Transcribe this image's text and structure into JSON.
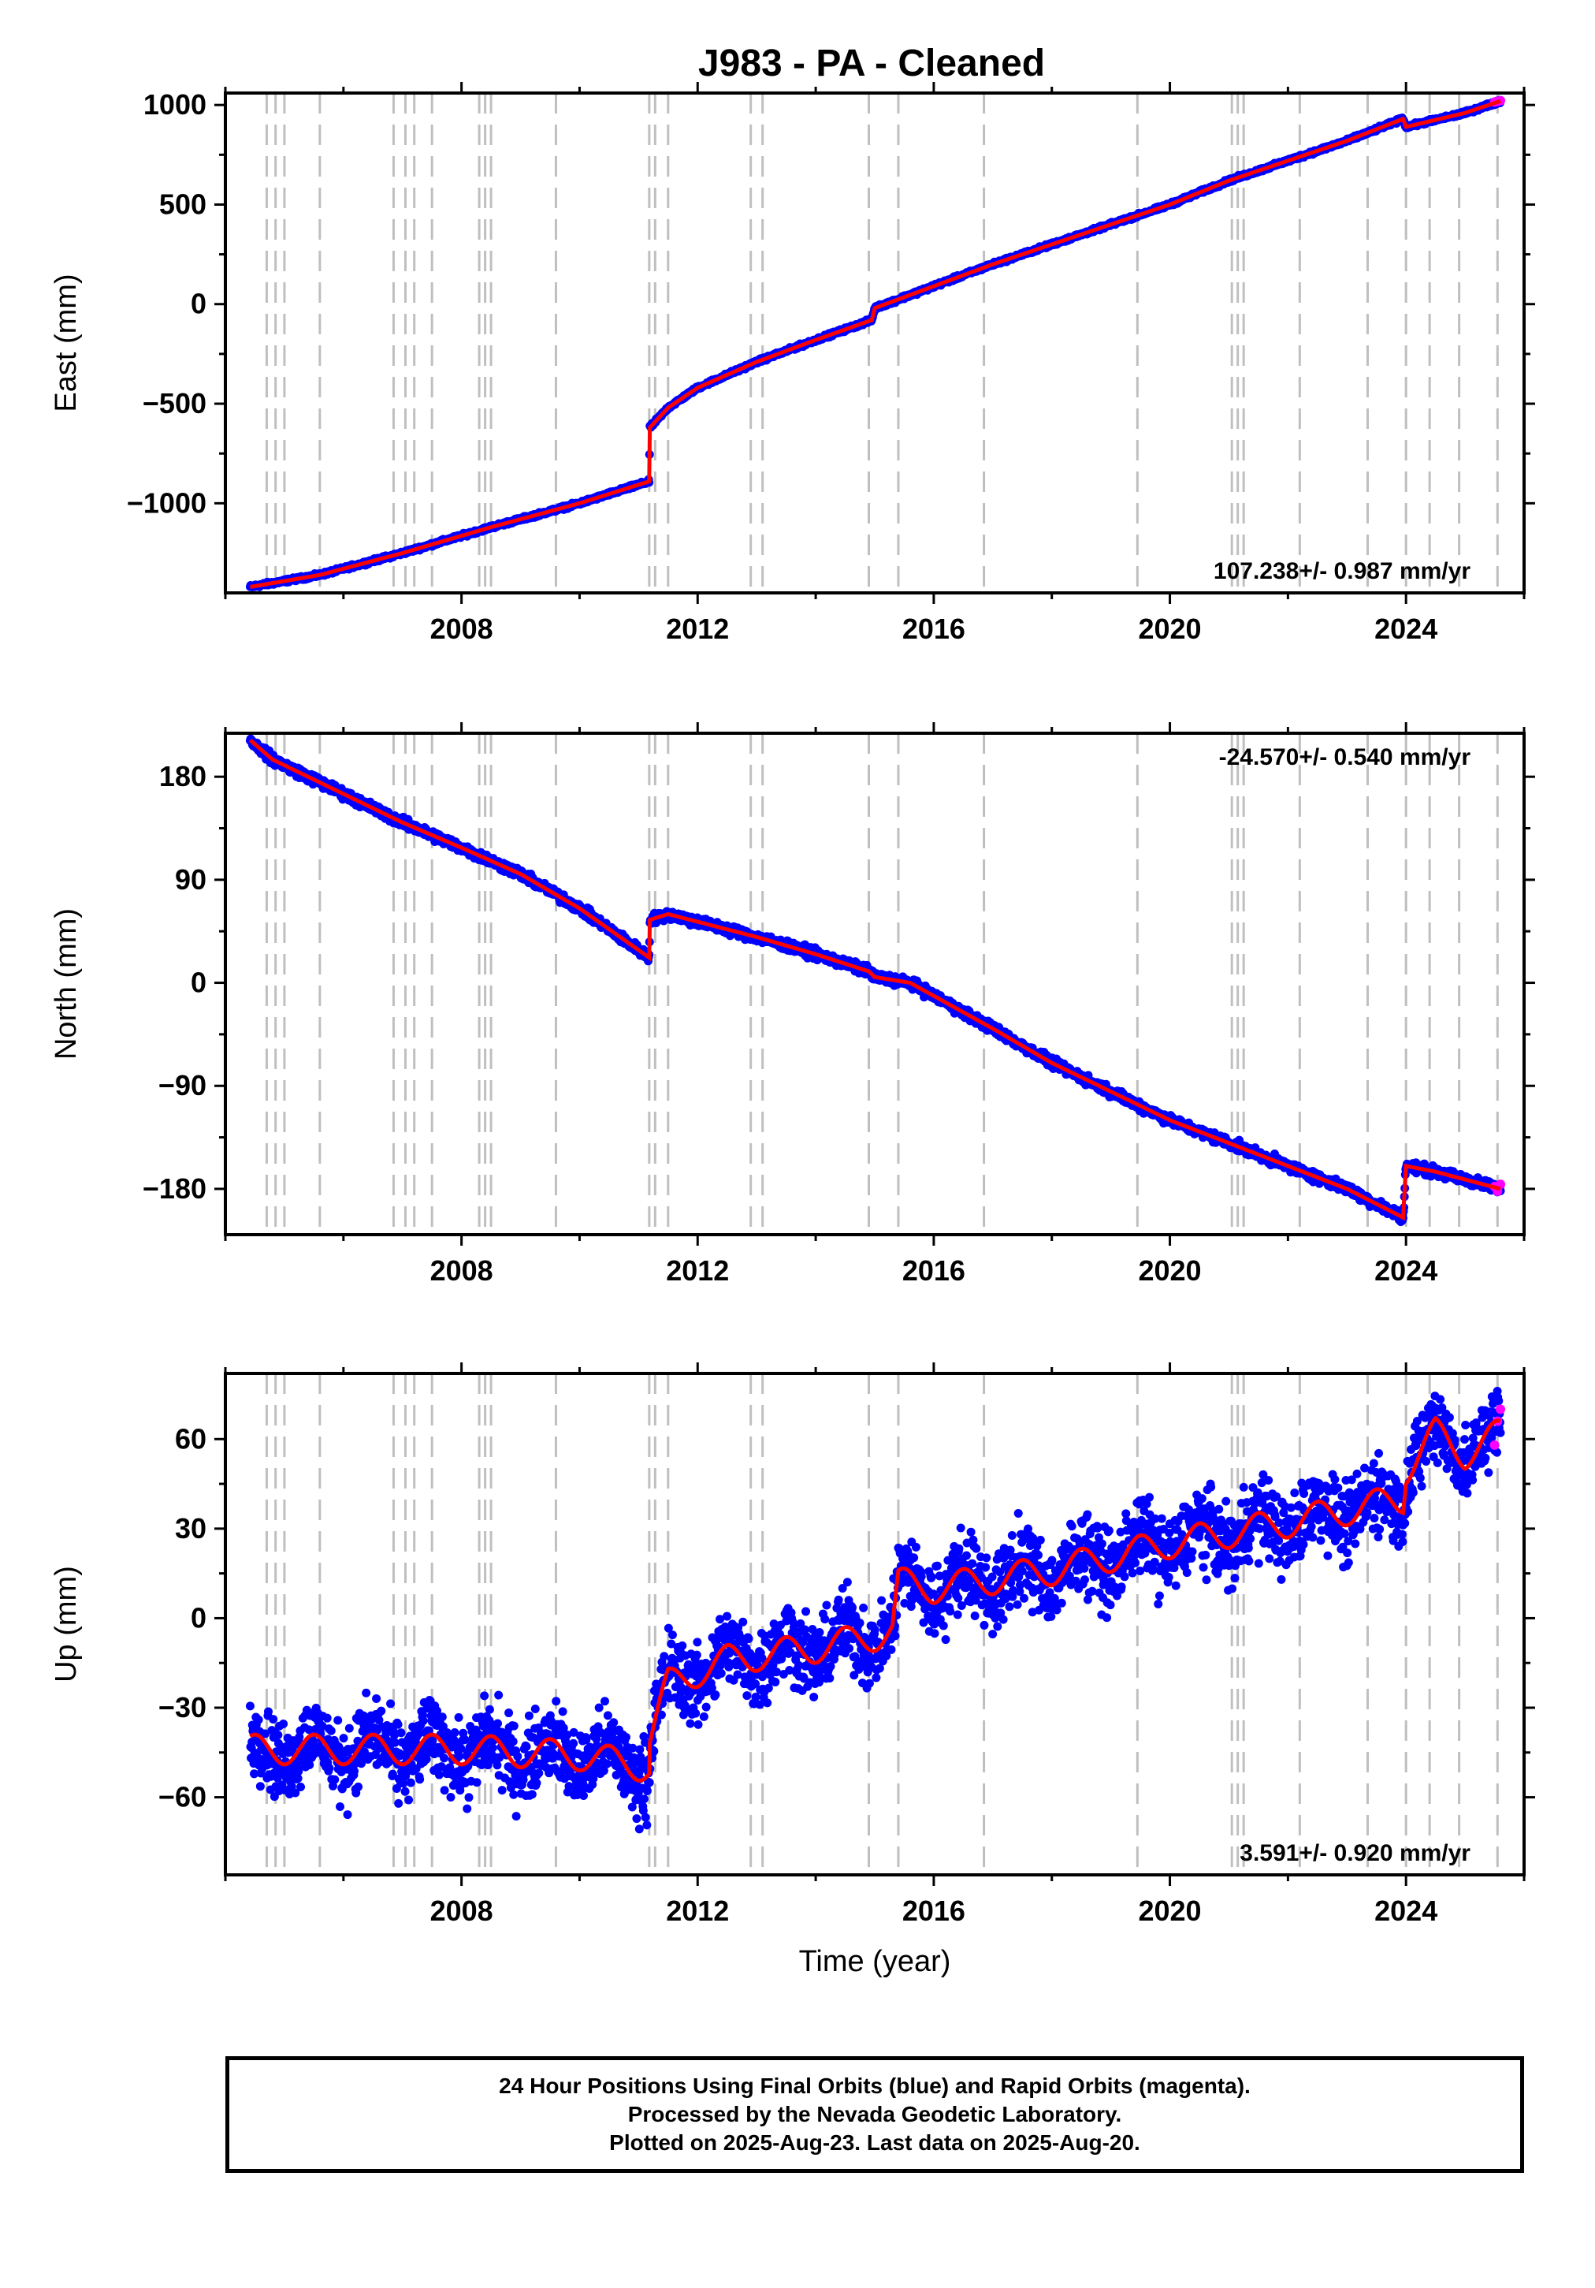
{
  "title": "J983  - PA - Cleaned",
  "footer": {
    "line1": "24 Hour Positions Using Final Orbits (blue) and Rapid Orbits (magenta).",
    "line2": "Processed by the Nevada Geodetic Laboratory.",
    "line3": "Plotted on 2025-Aug-23. Last data on 2025-Aug-20."
  },
  "colors": {
    "final": "#0000ff",
    "rapid": "#ff00ff",
    "model": "#ff0000",
    "event_lines": "#bfbfbf"
  },
  "chart_data": [
    {
      "type": "scatter",
      "panel": "east",
      "ylabel": "East (mm)",
      "xlabel": "",
      "xlim": [
        2004.0,
        2026.0
      ],
      "ylim": [
        -1450,
        1060
      ],
      "x_ticks": [
        2008,
        2012,
        2016,
        2020,
        2024
      ],
      "y_ticks": [
        -1000,
        -500,
        0,
        500,
        1000
      ],
      "rate": "107.238+/- 0.987 mm/yr",
      "rate_position": "bottom-right",
      "series_points": [
        [
          2004.42,
          -1420
        ],
        [
          2005.6,
          -1360
        ],
        [
          2007.0,
          -1250
        ],
        [
          2008.5,
          -1120
        ],
        [
          2010.0,
          -1000
        ],
        [
          2011.18,
          -890
        ],
        [
          2011.19,
          -620
        ],
        [
          2011.5,
          -520
        ],
        [
          2012.0,
          -420
        ],
        [
          2013.0,
          -290
        ],
        [
          2014.0,
          -180
        ],
        [
          2014.95,
          -80
        ],
        [
          2015.0,
          -20
        ],
        [
          2016.0,
          90
        ],
        [
          2017.0,
          200
        ],
        [
          2018.0,
          300
        ],
        [
          2019.0,
          400
        ],
        [
          2020.0,
          500
        ],
        [
          2021.0,
          620
        ],
        [
          2022.0,
          720
        ],
        [
          2023.0,
          820
        ],
        [
          2023.95,
          930
        ],
        [
          2024.0,
          890
        ],
        [
          2025.0,
          960
        ],
        [
          2025.6,
          1020
        ]
      ],
      "rapid_points": [
        [
          2025.5,
          1015
        ],
        [
          2025.55,
          1018
        ],
        [
          2025.6,
          1022
        ]
      ],
      "scatter_amplitude": 6
    },
    {
      "type": "scatter",
      "panel": "north",
      "ylabel": "North (mm)",
      "xlabel": "",
      "xlim": [
        2004.0,
        2026.0
      ],
      "ylim": [
        -220,
        218
      ],
      "x_ticks": [
        2008,
        2012,
        2016,
        2020,
        2024
      ],
      "y_ticks": [
        -180,
        -90,
        0,
        90,
        180
      ],
      "rate": "-24.570+/- 0.540 mm/yr",
      "rate_position": "top-right",
      "series_points": [
        [
          2004.42,
          212
        ],
        [
          2004.8,
          195
        ],
        [
          2006.0,
          165
        ],
        [
          2007.0,
          140
        ],
        [
          2008.0,
          118
        ],
        [
          2009.0,
          95
        ],
        [
          2010.0,
          65
        ],
        [
          2011.18,
          22
        ],
        [
          2011.19,
          55
        ],
        [
          2011.5,
          60
        ],
        [
          2013.0,
          40
        ],
        [
          2014.0,
          25
        ],
        [
          2014.9,
          10
        ],
        [
          2015.0,
          5
        ],
        [
          2015.6,
          0
        ],
        [
          2017.0,
          -40
        ],
        [
          2018.0,
          -70
        ],
        [
          2019.0,
          -95
        ],
        [
          2020.0,
          -120
        ],
        [
          2021.0,
          -140
        ],
        [
          2022.0,
          -160
        ],
        [
          2023.0,
          -180
        ],
        [
          2023.95,
          -205
        ],
        [
          2024.0,
          -160
        ],
        [
          2024.5,
          -165
        ],
        [
          2025.6,
          -180
        ]
      ],
      "rapid_points": [
        [
          2025.5,
          -178
        ],
        [
          2025.55,
          -182
        ],
        [
          2025.6,
          -176
        ]
      ],
      "scatter_amplitude": 3
    },
    {
      "type": "scatter",
      "panel": "up",
      "ylabel": "Up (mm)",
      "xlabel": "Time (year)",
      "xlim": [
        2004.0,
        2026.0
      ],
      "ylim": [
        -86,
        82
      ],
      "x_ticks": [
        2008,
        2012,
        2016,
        2020,
        2024
      ],
      "y_ticks": [
        -60,
        -30,
        0,
        30,
        60
      ],
      "rate": "3.591+/- 0.920 mm/yr",
      "rate_position": "bottom-right",
      "series_points": [
        [
          2004.42,
          -44
        ],
        [
          2006.0,
          -44
        ],
        [
          2008.0,
          -44
        ],
        [
          2010.0,
          -46
        ],
        [
          2011.18,
          -50
        ],
        [
          2011.19,
          -40
        ],
        [
          2011.5,
          -22
        ],
        [
          2012.5,
          -14
        ],
        [
          2014.0,
          -10
        ],
        [
          2015.0,
          -6
        ],
        [
          2015.3,
          -4
        ],
        [
          2015.4,
          12
        ],
        [
          2016.0,
          10
        ],
        [
          2018.0,
          16
        ],
        [
          2020.0,
          25
        ],
        [
          2022.0,
          32
        ],
        [
          2023.95,
          40
        ],
        [
          2024.0,
          50
        ],
        [
          2024.5,
          62
        ],
        [
          2025.0,
          55
        ],
        [
          2025.6,
          62
        ]
      ],
      "rapid_points": [
        [
          2025.5,
          58
        ],
        [
          2025.55,
          66
        ],
        [
          2025.6,
          70
        ]
      ],
      "scatter_amplitude": 9,
      "seasonal_amplitude": 5
    }
  ],
  "event_lines": [
    2004.7,
    2004.85,
    2005.0,
    2005.6,
    2006.85,
    2007.05,
    2007.2,
    2007.5,
    2008.3,
    2008.4,
    2008.5,
    2009.6,
    2011.18,
    2011.28,
    2011.5,
    2012.9,
    2013.1,
    2014.9,
    2015.4,
    2016.85,
    2019.45,
    2021.05,
    2021.15,
    2021.25,
    2022.2,
    2023.35,
    2024.0,
    2024.4,
    2024.9,
    2025.55
  ]
}
